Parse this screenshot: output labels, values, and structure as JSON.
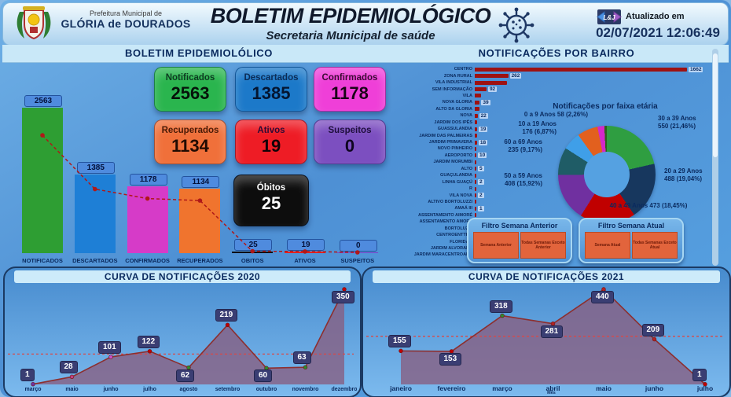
{
  "header": {
    "org_small": "Prefeitura Municipal de",
    "org_name": "GLÓRIA de DOURADOS",
    "title": "BOLETIM EPIDEMIOLÓGICO",
    "subtitle": "Secretaria Municipal de saúde",
    "logo_badge": "L&J",
    "updated_label": "Atualizado em",
    "updated_value": "02/07/2021 12:06:49"
  },
  "section_titles": {
    "left": "BOLETIM EPIDEMIOLÓLICO",
    "right": "NOTIFICAÇÕES POR BAIRRO"
  },
  "cards": [
    {
      "label": "Notificados",
      "value": "2563",
      "bg": "#2AB54E",
      "label_color": "#0C3A20",
      "value_color": "#06130A"
    },
    {
      "label": "Descartados",
      "value": "1385",
      "bg": "#1C79C9",
      "label_color": "#0B2B55",
      "value_color": "#041530"
    },
    {
      "label": "Confirmados",
      "value": "1178",
      "bg": "#EF3FD8",
      "label_color": "#3A0A33",
      "value_color": "#1C0418"
    },
    {
      "label": "Recuperados",
      "value": "1134",
      "bg": "#F0703A",
      "label_color": "#4A1A06",
      "value_color": "#220B02"
    },
    {
      "label": "Ativos",
      "value": "19",
      "bg": "#EE1C25",
      "label_color": "#2E0A34",
      "value_color": "#120207"
    },
    {
      "label": "Suspeitos",
      "value": "0",
      "bg": "#7C4FC0",
      "label_color": "#1E0E3C",
      "value_color": "#0E0520"
    },
    {
      "label": "Óbitos",
      "value": "25",
      "bg": "#0D0D0D",
      "label_color": "#FFFFFF",
      "value_color": "#FFFFFF"
    }
  ],
  "filters": [
    {
      "title": "Filtro Semana Anterior",
      "buttons": [
        "Semana Anterior",
        "Todas Semanas Exceto Anterior"
      ]
    },
    {
      "title": "Filtro Semana Atual",
      "buttons": [
        "Semana Atual",
        "Todas Semanas Exceto Atual"
      ]
    }
  ],
  "chart_data": [
    {
      "id": "summary",
      "type": "bar",
      "title": "BOLETIM EPIDEMIOLÓLICO",
      "categories": [
        "NOTIFICADOS",
        "DESCARTADOS",
        "CONFIRMADOS",
        "RECUPERADOS",
        "OBITOS",
        "ATIVOS",
        "SUSPEITOS"
      ],
      "values": [
        2563,
        1385,
        1178,
        1134,
        25,
        19,
        0
      ],
      "colors": [
        "#2E9E33",
        "#1E7FD6",
        "#D63BC8",
        "#F0742E",
        "#0D0D0D",
        "#E8201E",
        "#7B42C8"
      ],
      "trend_line": true
    },
    {
      "id": "bairros",
      "type": "bar",
      "orientation": "horizontal",
      "title": "NOTIFICAÇÕES POR BAIRRO",
      "bar_color": "#9E1212",
      "rows": [
        {
          "label": "CENTRO",
          "value": 1662
        },
        {
          "label": "ZONA RURAL",
          "value": 262
        },
        {
          "label": "VILA INDUSTRIAL",
          "value": null,
          "est": 250
        },
        {
          "label": "SEM INFORMAÇÃO",
          "value": 92
        },
        {
          "label": "VILA",
          "value": null,
          "est": 50
        },
        {
          "label": "NOVA GLORIA",
          "value": 39
        },
        {
          "label": "ALTO DA GLORIA",
          "value": null,
          "est": 35
        },
        {
          "label": "NOVA",
          "value": 22
        },
        {
          "label": "JARDIM DOS IPÊS",
          "value": null,
          "est": 20
        },
        {
          "label": "GUASSULANDIA",
          "value": 19
        },
        {
          "label": "JARDIM DAS PALMEIRAS",
          "value": null,
          "est": 18
        },
        {
          "label": "JARDIM PRIMAVERA",
          "value": 18
        },
        {
          "label": "NOVO PINHEIRO",
          "value": null,
          "est": 12
        },
        {
          "label": "AEROPORTO",
          "value": 10
        },
        {
          "label": "JARDIM MORUMBI",
          "value": null,
          "est": 8
        },
        {
          "label": "ALTO",
          "value": 5
        },
        {
          "label": "GUAÇULANDIA",
          "value": null,
          "est": 4
        },
        {
          "label": "LINHA GUAÇÚ",
          "value": 2
        },
        {
          "label": "R",
          "value": null,
          "est": 2
        },
        {
          "label": "VILA NOVA",
          "value": 2
        },
        {
          "label": "ALTIVO BORTOLUZZI",
          "value": null,
          "est": 1
        },
        {
          "label": "AMAÁ III",
          "value": 1
        },
        {
          "label": "ASSENTAMENTO AIMORÉ",
          "value": null,
          "est": 1
        },
        {
          "label": "ASSENTAMENTO AMORÉ",
          "value": 1
        },
        {
          "label": "BORTOLUZZI",
          "value": null,
          "est": 1
        },
        {
          "label": "CENTROENTTRO",
          "value": 1
        },
        {
          "label": "FLORIDA II",
          "value": null,
          "est": 1
        },
        {
          "label": "JARDIM ALVORADA",
          "value": 1
        },
        {
          "label": "JARDIM MARACENTROANA",
          "value": null,
          "est": 1
        }
      ]
    },
    {
      "id": "faixa_etaria",
      "type": "pie",
      "title": "Notificações por faixa etária",
      "slices": [
        {
          "label": "30 a 39 Anos",
          "value": 550,
          "pct_label": "(21,46%)",
          "pct": 21.46,
          "color": "#2F9E41"
        },
        {
          "label": "20 a 29 Anos",
          "value": 488,
          "pct_label": "(19,04%)",
          "pct": 19.04,
          "color": "#17375E"
        },
        {
          "label": "40 a 49 Anos",
          "value": 473,
          "pct_label": "(18,45%)",
          "pct": 18.45,
          "color": "#C00000"
        },
        {
          "label": "50 a 59 Anos",
          "value": 408,
          "pct_label": "(15,92%)",
          "pct": 15.92,
          "color": "#7030A0"
        },
        {
          "label": "60 a 69 Anos",
          "value": 235,
          "pct_label": "(9,17%)",
          "pct": 9.17,
          "color": "#1F5C66"
        },
        {
          "label": "",
          "value": null,
          "pct_label": "",
          "pct": 6.0,
          "color": "#3F9FE8"
        },
        {
          "label": "10 a 19 Anos",
          "value": 176,
          "pct_label": "(6,87%)",
          "pct": 6.87,
          "color": "#E2601E"
        },
        {
          "label": "0 a 9 Anos",
          "value": 58,
          "pct_label": "(2,26%)",
          "pct": 2.26,
          "color": "#D428C8"
        },
        {
          "label": "",
          "value": null,
          "pct_label": "",
          "pct": 0.83,
          "color": "#2E5E1E"
        }
      ]
    },
    {
      "id": "curva2020",
      "type": "area",
      "title": "CURVA DE NOTIFICAÇÕES 2020",
      "categories": [
        "março",
        "maio",
        "junho",
        "julho",
        "agosto",
        "setembro",
        "outubro",
        "novembro",
        "dezembro"
      ],
      "values": [
        1,
        28,
        101,
        122,
        62,
        219,
        60,
        63,
        350
      ],
      "badge_pos": [
        "above",
        "above",
        "above",
        "above",
        "below",
        "above",
        "below",
        "above",
        "below"
      ],
      "avg_dashed_line": true
    },
    {
      "id": "curva2021",
      "type": "area",
      "title": "CURVA DE NOTIFICAÇÕES 2021",
      "categories": [
        "janeiro",
        "fevereiro",
        "março",
        "abril",
        "maio",
        "junho",
        "julho"
      ],
      "values": [
        155,
        153,
        318,
        281,
        440,
        209,
        1
      ],
      "badge_pos": [
        "above",
        "below",
        "above",
        "below",
        "below",
        "above",
        "above"
      ],
      "xlabel": "Mês",
      "avg_dashed_line": true
    }
  ]
}
